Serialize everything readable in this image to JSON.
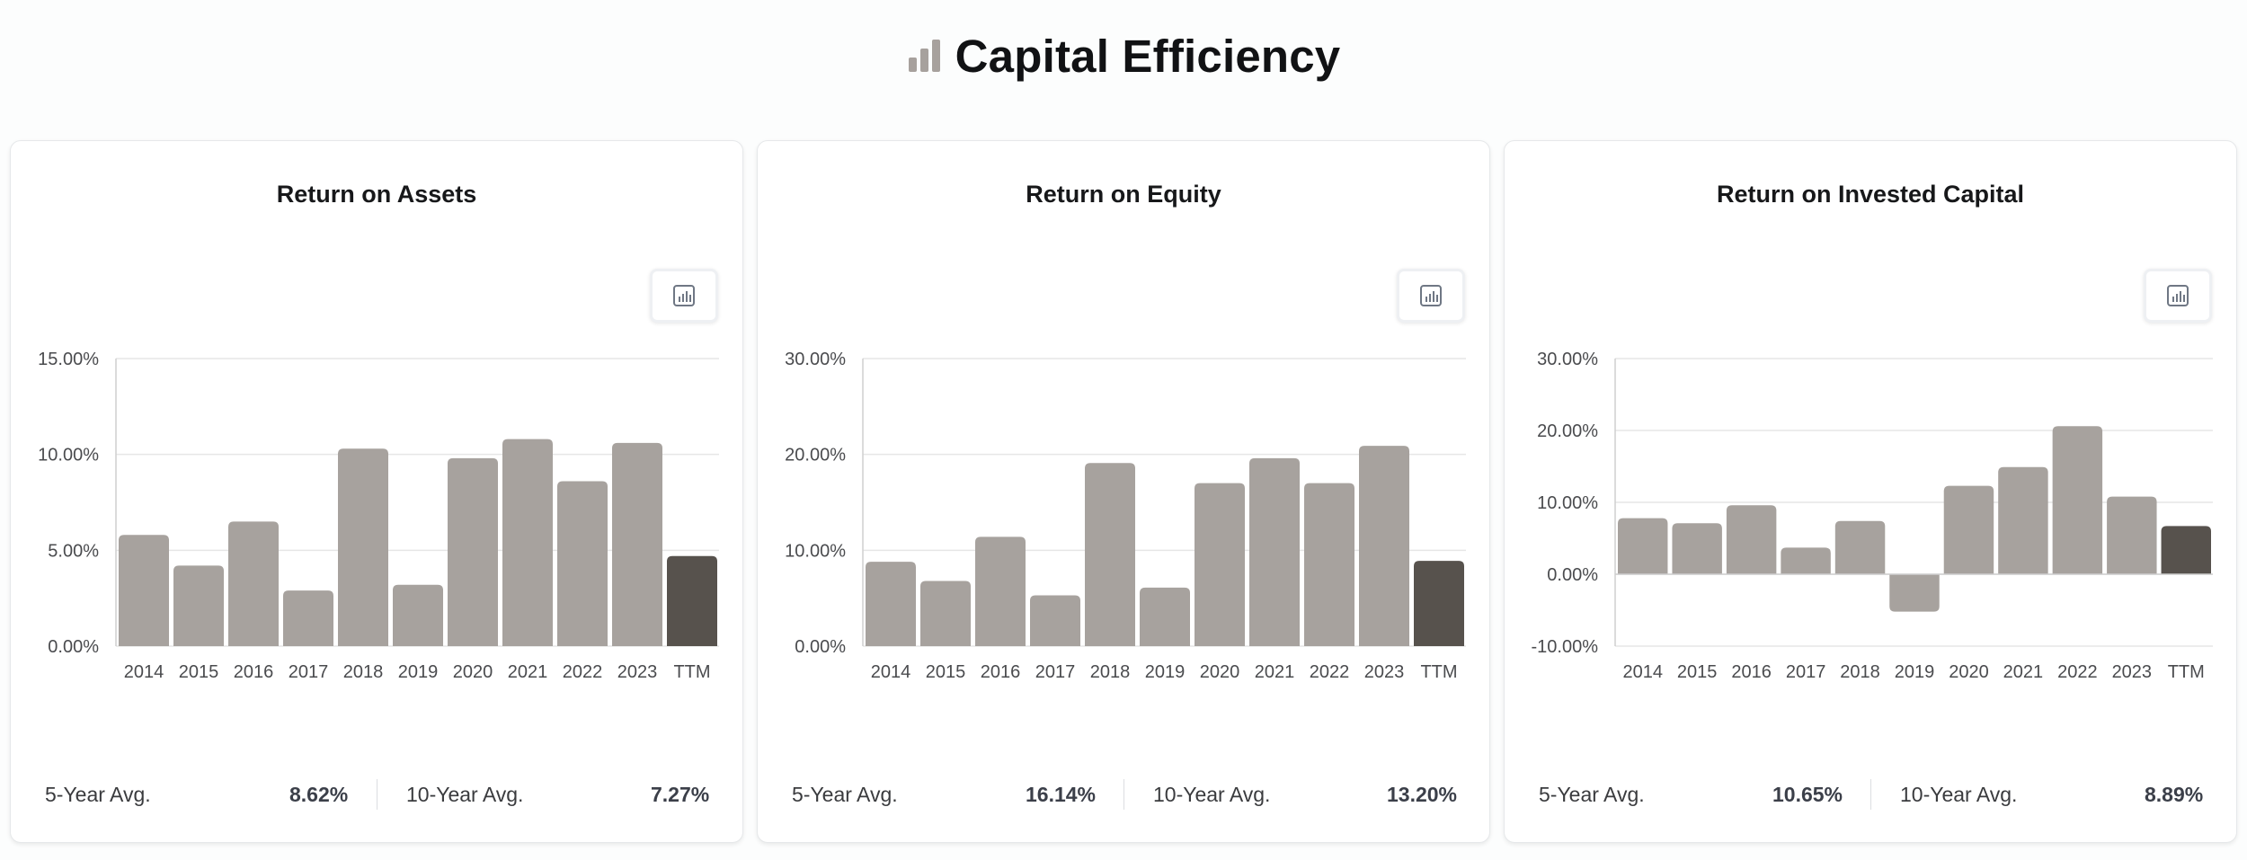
{
  "header": {
    "title": "Capital Efficiency",
    "icon": "bar-chart-icon",
    "icon_color": "#a7a19d"
  },
  "colors": {
    "bar": "#a7a29e",
    "bar_ttm": "#57524d",
    "grid": "#e6e6e6",
    "axis": "#cfcfcf"
  },
  "chart_data": [
    {
      "type": "bar",
      "title": "Return on Assets",
      "categories": [
        "2014",
        "2015",
        "2016",
        "2017",
        "2018",
        "2019",
        "2020",
        "2021",
        "2022",
        "2023",
        "TTM"
      ],
      "values": [
        5.8,
        4.2,
        6.5,
        2.9,
        10.3,
        3.2,
        9.8,
        10.8,
        8.6,
        10.6,
        4.7
      ],
      "ylim": [
        0,
        15
      ],
      "yticks": [
        0,
        5,
        10,
        15
      ],
      "ytick_labels": [
        "0.00%",
        "5.00%",
        "10.00%",
        "15.00%"
      ],
      "grid": true,
      "averages": [
        {
          "label": "5-Year Avg.",
          "value": "8.62%"
        },
        {
          "label": "10-Year Avg.",
          "value": "7.27%"
        }
      ]
    },
    {
      "type": "bar",
      "title": "Return on Equity",
      "categories": [
        "2014",
        "2015",
        "2016",
        "2017",
        "2018",
        "2019",
        "2020",
        "2021",
        "2022",
        "2023",
        "TTM"
      ],
      "values": [
        8.8,
        6.8,
        11.4,
        5.3,
        19.1,
        6.1,
        17.0,
        19.6,
        17.0,
        20.9,
        8.9
      ],
      "ylim": [
        0,
        30
      ],
      "yticks": [
        0,
        10,
        20,
        30
      ],
      "ytick_labels": [
        "0.00%",
        "10.00%",
        "20.00%",
        "30.00%"
      ],
      "grid": true,
      "averages": [
        {
          "label": "5-Year Avg.",
          "value": "16.14%"
        },
        {
          "label": "10-Year Avg.",
          "value": "13.20%"
        }
      ]
    },
    {
      "type": "bar",
      "title": "Return on Invested Capital",
      "categories": [
        "2014",
        "2015",
        "2016",
        "2017",
        "2018",
        "2019",
        "2020",
        "2021",
        "2022",
        "2023",
        "TTM"
      ],
      "values": [
        7.8,
        7.1,
        9.6,
        3.7,
        7.4,
        -5.2,
        12.3,
        14.9,
        20.6,
        10.8,
        6.7
      ],
      "ylim": [
        -10,
        30
      ],
      "yticks": [
        -10,
        0,
        10,
        20,
        30
      ],
      "ytick_labels": [
        "-10.00%",
        "0.00%",
        "10.00%",
        "20.00%",
        "30.00%"
      ],
      "grid": true,
      "averages": [
        {
          "label": "5-Year Avg.",
          "value": "10.65%"
        },
        {
          "label": "10-Year Avg.",
          "value": "8.89%"
        }
      ]
    }
  ]
}
